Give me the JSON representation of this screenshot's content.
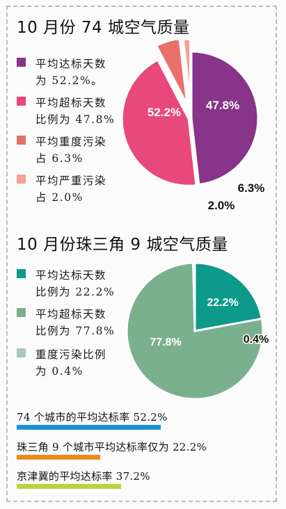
{
  "chart_data": [
    {
      "type": "pie",
      "title": "10 月份 74 城空气质量",
      "slices": [
        {
          "value": 52.2,
          "label": "52.2%",
          "legend": "平均达标天数\n为 52.2%。",
          "color": "#873489"
        },
        {
          "value": 47.8,
          "label": "47.8%",
          "legend": "平均超标天数\n比例为 47.8%",
          "color": "#e8487b"
        },
        {
          "value": 6.3,
          "label": "6.3%",
          "legend": "平均重度污染\n占 6.3%",
          "color": "#e9706a"
        },
        {
          "value": 2.0,
          "label": "2.0%",
          "legend": "平均严重污染\n占 2.0%",
          "color": "#f2a296"
        }
      ]
    },
    {
      "type": "pie",
      "title": "10 月份珠三角 9 城空气质量",
      "slices": [
        {
          "value": 22.2,
          "label": "22.2%",
          "legend": "平均达标天数\n比例为 22.2%",
          "color": "#0d9a8a"
        },
        {
          "value": 77.8,
          "label": "77.8%",
          "legend": "平均超标天数\n比例为 77.8%",
          "color": "#7bb08f"
        },
        {
          "value": 0.4,
          "label": "0.4%",
          "legend": "重度污染比例\n为 0.4%",
          "color": "#a9c7bc"
        }
      ]
    }
  ],
  "stats": [
    {
      "text": "74 个城市的平均达标率 52.2%",
      "color": "#1a93d0"
    },
    {
      "text": "珠三角 9 个城市平均达标率仅为 22.2%",
      "color": "#f08a1e"
    },
    {
      "text": "京津冀的平均达标率 37.2%",
      "color": "#bcd23d"
    }
  ]
}
